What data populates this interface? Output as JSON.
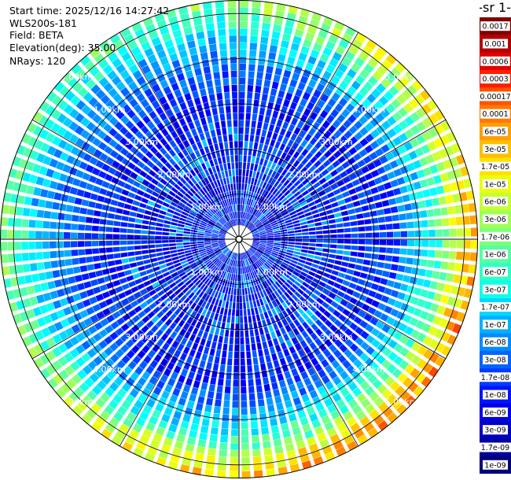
{
  "info": {
    "start_time": "Start time: 2025/12/16 14:27:42",
    "device": "WLS200s-181",
    "field": "Field: BETA",
    "elevation": "Elevation(deg): 35.00",
    "nrays": "NRays: 120"
  },
  "colorbar": {
    "title": "-1 sr-",
    "labels": [
      "0.0017",
      "0.001",
      "0.0006",
      "0.0003",
      "0.00017",
      "0.0001",
      "6e-05",
      "3e-05",
      "1.7e-05",
      "1e-05",
      "6e-06",
      "3e-06",
      "1.7e-06",
      "1e-06",
      "6e-07",
      "3e-07",
      "1.7e-07",
      "1e-07",
      "6e-08",
      "3e-08",
      "1.7e-08",
      "1e-08",
      "6e-09",
      "3e-09",
      "1.7e-09",
      "1e-09"
    ],
    "colors": [
      "#7f0000",
      "#b50000",
      "#e00000",
      "#ff1e00",
      "#ff5200",
      "#ff7a00",
      "#ff9e00",
      "#ffbe00",
      "#ffe000",
      "#eaff0d",
      "#c6ff31",
      "#a0ff56",
      "#7dff7a",
      "#56ffa0",
      "#31ffc6",
      "#0dffea",
      "#00d8ff",
      "#00b0ff",
      "#008cff",
      "#0064ff",
      "#003cff",
      "#0014ff",
      "#0000e8",
      "#0000c4",
      "#00009c",
      "#000078"
    ]
  },
  "chart_data": {
    "type": "heatmap",
    "projection": "polar",
    "n_rays": 120,
    "range_rings_km": [
      1,
      2,
      3,
      4,
      5
    ],
    "ring_labels": [
      "1.00km",
      "2.00km",
      "3.00km",
      "4.00km",
      "5.00km"
    ],
    "max_range_km": 5.3,
    "colorscale": "jet",
    "value_range": [
      "1e-09",
      "0.0017"
    ],
    "spokes_deg": [
      0,
      30,
      60,
      90,
      120,
      150,
      180,
      210,
      240,
      270,
      300,
      330
    ]
  }
}
